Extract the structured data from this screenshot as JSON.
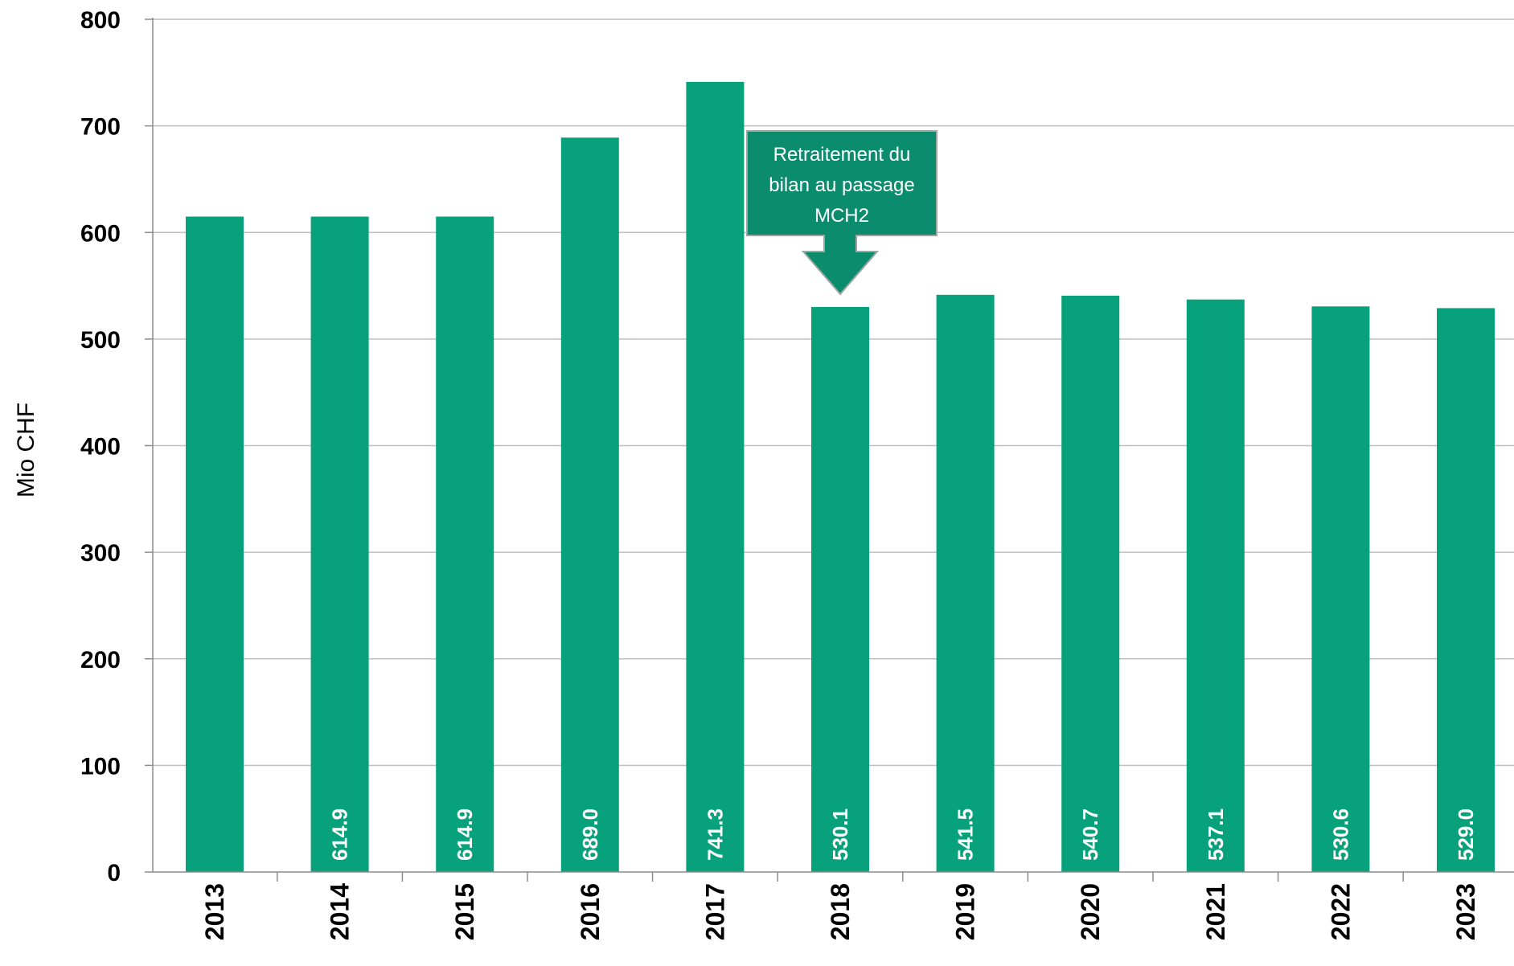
{
  "chart_data": {
    "type": "bar",
    "title": "",
    "xlabel": "",
    "ylabel": "Mio CHF",
    "ylim": [
      0,
      800
    ],
    "yticks": [
      0,
      100,
      200,
      300,
      400,
      500,
      600,
      700,
      800
    ],
    "grid": true,
    "categories": [
      "2013",
      "2014",
      "2015",
      "2016",
      "2017",
      "2018",
      "2019",
      "2020",
      "2021",
      "2022",
      "2023"
    ],
    "values": [
      614.9,
      614.9,
      614.9,
      689.0,
      741.3,
      530.1,
      541.5,
      540.7,
      537.1,
      530.6,
      529.0
    ],
    "data_labels": [
      "",
      "614.9",
      "614.9",
      "689.0",
      "741.3",
      "530.1",
      "541.5",
      "540.7",
      "537.1",
      "530.6",
      "529.0"
    ],
    "bar_color": "#07a27c",
    "annotation": {
      "lines": [
        "Retraitement du",
        "bilan au passage",
        "MCH2"
      ],
      "target_category": "2018",
      "color": "#0b8c6c"
    }
  }
}
